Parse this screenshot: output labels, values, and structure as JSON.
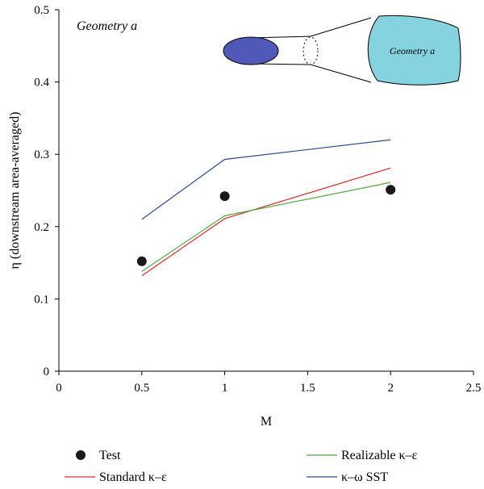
{
  "chart_data": {
    "type": "line",
    "title": "",
    "annotation": "Geometry a",
    "inset_label": "Geometry a",
    "xlabel": "M",
    "ylabel": "η (downstream area-averaged)",
    "xlim": [
      0,
      2.5
    ],
    "ylim": [
      0,
      0.5
    ],
    "xticks": [
      "0",
      "0.5",
      "1",
      "1.5",
      "2",
      "2.5"
    ],
    "yticks": [
      "0",
      "0.1",
      "0.2",
      "0.3",
      "0.4",
      "0.5"
    ],
    "grid": false,
    "legend_position": "bottom",
    "series": [
      {
        "name": "Test",
        "kind": "scatter",
        "color": "#1a1a1a",
        "x": [
          0.5,
          1,
          2
        ],
        "y": [
          0.152,
          0.242,
          0.251
        ]
      },
      {
        "name": "Standard κ–ε",
        "kind": "line",
        "color": "#e8262a",
        "x": [
          0.5,
          1,
          2
        ],
        "y": [
          0.132,
          0.211,
          0.281
        ]
      },
      {
        "name": "Realizable κ–ε",
        "kind": "line",
        "color": "#4dae3c",
        "x": [
          0.5,
          1,
          2
        ],
        "y": [
          0.138,
          0.215,
          0.261
        ]
      },
      {
        "name": "κ–ω SST",
        "kind": "line",
        "color": "#2c4a9c",
        "x": [
          0.5,
          1,
          2
        ],
        "y": [
          0.21,
          0.293,
          0.32
        ]
      }
    ],
    "inset_colors": {
      "inlet": "#5058b8",
      "outlet": "#84d3de"
    }
  }
}
